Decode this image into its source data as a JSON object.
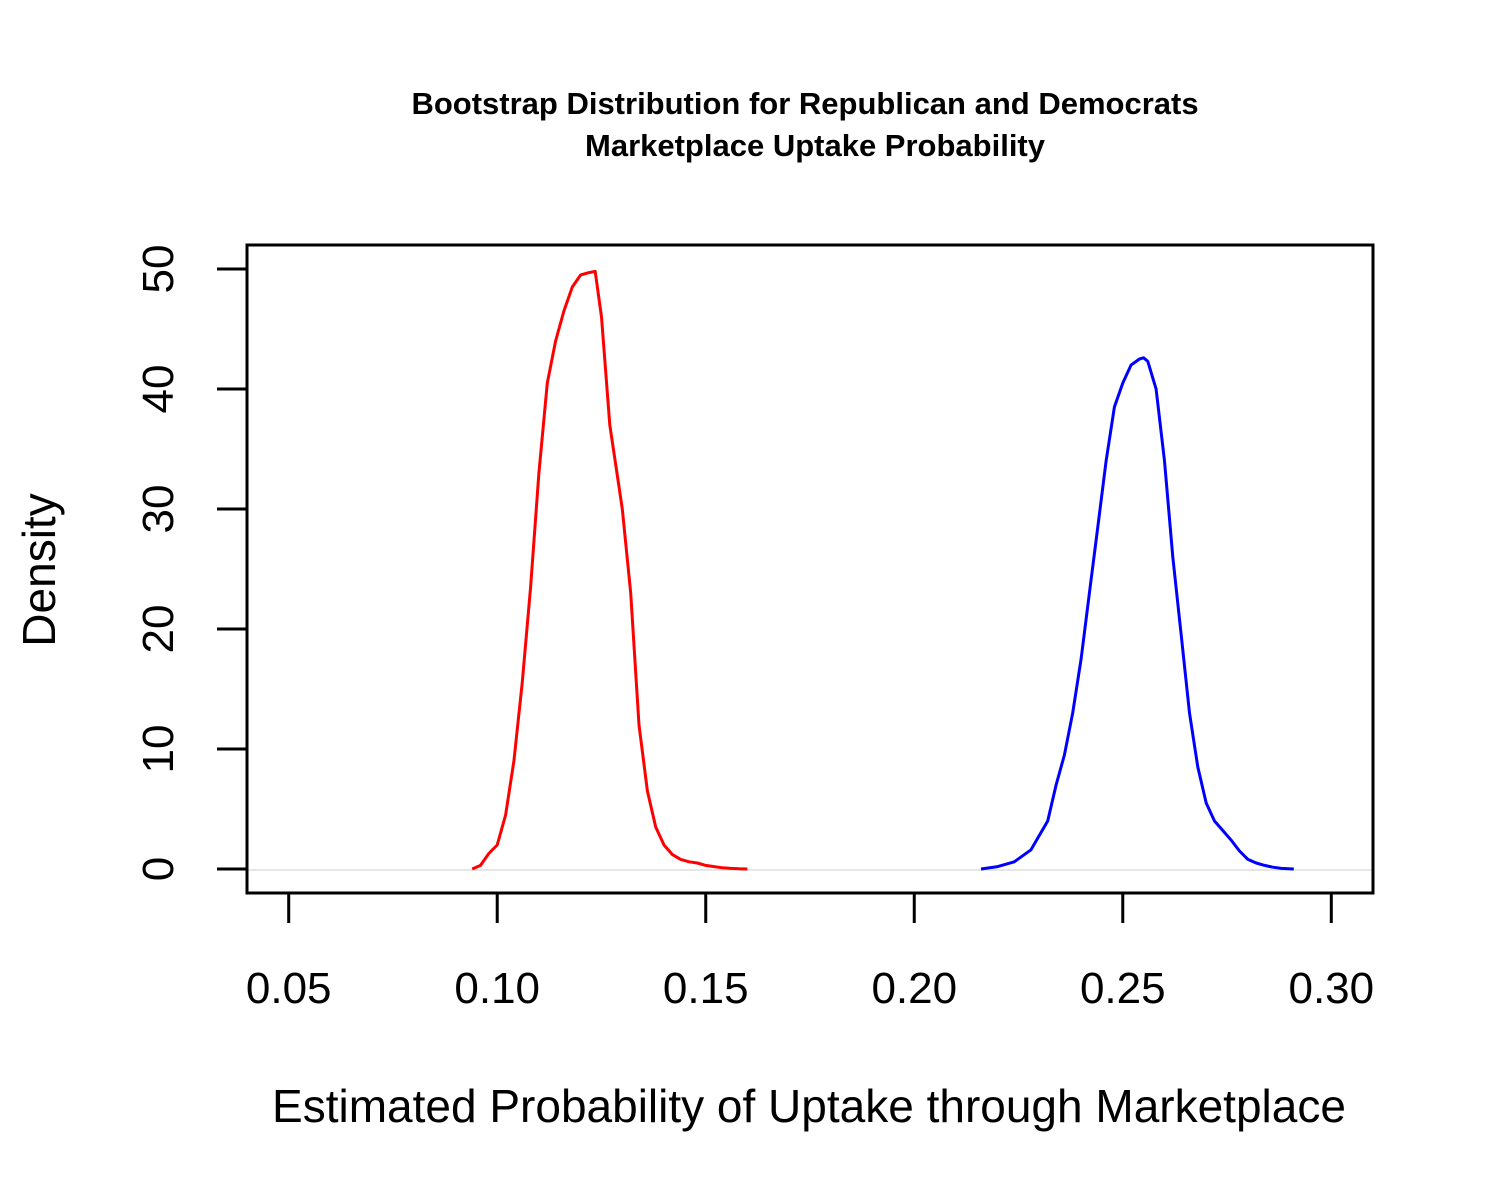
{
  "chart_data": {
    "type": "line",
    "title": "Bootstrap Distribution for Republican and Democrats",
    "subtitle": "Marketplace Uptake Probability",
    "xlabel": "Estimated Probability of Uptake through Marketplace",
    "ylabel": "Density",
    "xlim": [
      0.04,
      0.31
    ],
    "ylim": [
      -2,
      52
    ],
    "xticks": [
      "0.05",
      "0.10",
      "0.15",
      "0.20",
      "0.25",
      "0.30"
    ],
    "yticks": [
      "0",
      "10",
      "20",
      "30",
      "40",
      "50"
    ],
    "grid": false,
    "legend": "none",
    "baseline": 0,
    "colors": {
      "series_1": "#ff0000",
      "series_2": "#0000ff",
      "baseline": "#e6e6e6"
    },
    "series": [
      {
        "color": "#ff0000",
        "x": [
          0.094,
          0.096,
          0.098,
          0.1,
          0.102,
          0.104,
          0.106,
          0.108,
          0.11,
          0.112,
          0.114,
          0.116,
          0.118,
          0.12,
          0.122,
          0.1235,
          0.125,
          0.127,
          0.13,
          0.132,
          0.134,
          0.136,
          0.138,
          0.14,
          0.142,
          0.144,
          0.146,
          0.148,
          0.15,
          0.152,
          0.154,
          0.156,
          0.158,
          0.16
        ],
        "y": [
          0.0,
          0.3,
          1.3,
          2.0,
          4.5,
          9.0,
          15.5,
          23.5,
          33.0,
          40.5,
          44.0,
          46.5,
          48.5,
          49.5,
          49.7,
          49.8,
          46.0,
          37.0,
          30.0,
          23.0,
          12.0,
          6.5,
          3.5,
          2.0,
          1.2,
          0.8,
          0.6,
          0.5,
          0.3,
          0.2,
          0.1,
          0.05,
          0.02,
          0.0
        ]
      },
      {
        "color": "#0000ff",
        "x": [
          0.216,
          0.22,
          0.224,
          0.228,
          0.232,
          0.234,
          0.236,
          0.238,
          0.24,
          0.242,
          0.244,
          0.246,
          0.248,
          0.25,
          0.252,
          0.254,
          0.255,
          0.256,
          0.258,
          0.26,
          0.262,
          0.264,
          0.266,
          0.268,
          0.27,
          0.272,
          0.274,
          0.276,
          0.278,
          0.28,
          0.282,
          0.284,
          0.286,
          0.288,
          0.291
        ],
        "y": [
          0.0,
          0.2,
          0.6,
          1.6,
          4.0,
          7.0,
          9.5,
          13.0,
          17.5,
          23.0,
          28.5,
          34.0,
          38.5,
          40.5,
          42.0,
          42.5,
          42.6,
          42.3,
          40.0,
          34.0,
          26.0,
          19.5,
          13.0,
          8.5,
          5.5,
          4.0,
          3.2,
          2.4,
          1.5,
          0.8,
          0.5,
          0.3,
          0.15,
          0.05,
          0.0
        ]
      }
    ]
  }
}
